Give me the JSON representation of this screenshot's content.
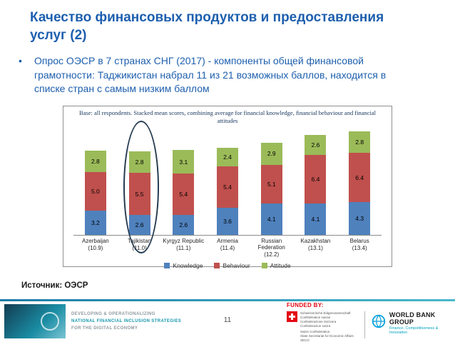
{
  "slide": {
    "title": "Качество финансовых продуктов и предоставления услуг (2)",
    "bullet_marker": "•",
    "bullet": "Опрос ОЭСР в 7 странах СНГ (2017) - компоненты общей финансовой грамотности: Таджикистан набрал 11 из 21 возможных баллов, находится в списке стран с самым низким баллом",
    "source": "Источник: ОЭСР"
  },
  "chart_data": {
    "type": "bar",
    "stacked": true,
    "title": "Base: all respondents. Stacked mean scores, combining average for financial knowledge, financial behaviour and financial attitudes",
    "categories": [
      "Azerbaijan",
      "Tajikistan",
      "Kyrgyz Republic",
      "Armenia",
      "Russian Federation",
      "Kazakhstan",
      "Belarus"
    ],
    "category_totals": [
      "(10.9)",
      "(11.0)",
      "(11.1)",
      "(11.4)",
      "(12.2)",
      "(13.1)",
      "(13.4)"
    ],
    "series": [
      {
        "name": "Knowledge",
        "color": "#4f81bd",
        "values": [
          3.2,
          2.6,
          2.6,
          3.6,
          4.1,
          4.1,
          4.3
        ]
      },
      {
        "name": "Behaviour",
        "color": "#c0504d",
        "values": [
          5.0,
          5.5,
          5.4,
          5.4,
          5.1,
          6.4,
          6.4
        ]
      },
      {
        "name": "Attitude",
        "color": "#9bbb59",
        "values": [
          2.8,
          2.8,
          3.1,
          2.4,
          2.9,
          2.6,
          2.8
        ]
      }
    ],
    "ylim": [
      0,
      14
    ],
    "legend_position": "bottom",
    "annotation": "ellipse highlight around Tajikistan column"
  },
  "footer": {
    "left_logo": {
      "line1": "DEVELOPING & OPERATIONALIZING",
      "line2": "NATIONAL FINANCIAL INCLUSION STRATEGIES",
      "line3": "FOR THE DIGITAL ECONOMY"
    },
    "funded_by": "FUNDED BY:",
    "swiss_logo_lines": [
      "Schweizerische Eidgenossenschaft",
      "Confédération suisse",
      "Confederazione Svizzera",
      "Confederaziun svizra"
    ],
    "swiss_logo_sub": [
      "Swiss Confederation",
      "State Secretariat for Economic Affairs SECO"
    ],
    "worldbank_name": "WORLD BANK GROUP",
    "worldbank_tagline": "Finance, Competitiveness & Innovation",
    "page_number": "11"
  }
}
